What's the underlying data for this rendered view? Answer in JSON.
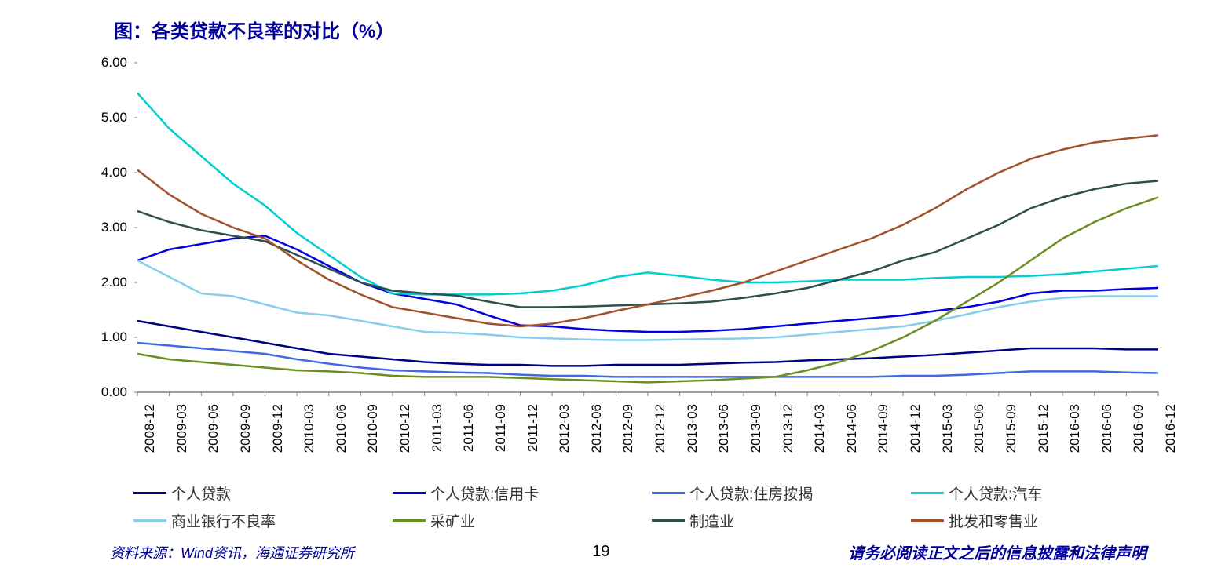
{
  "title": "图：各类贷款不良率的对比（%）",
  "chart": {
    "type": "line",
    "background_color": "#ffffff",
    "title_color": "#000099",
    "title_fontsize": 24,
    "axis_color": "#808080",
    "axis_label_color": "#000000",
    "axis_label_fontsize": 17,
    "ylim": [
      0,
      6
    ],
    "ytick_step": 1,
    "yticks": [
      "0.00",
      "1.00",
      "2.00",
      "3.00",
      "4.00",
      "5.00",
      "6.00"
    ],
    "line_width": 2.5,
    "x_labels": [
      "2008-12",
      "2009-03",
      "2009-06",
      "2009-09",
      "2009-12",
      "2010-03",
      "2010-06",
      "2010-09",
      "2010-12",
      "2011-03",
      "2011-06",
      "2011-09",
      "2011-12",
      "2012-03",
      "2012-06",
      "2012-09",
      "2012-12",
      "2013-03",
      "2013-06",
      "2013-09",
      "2013-12",
      "2014-03",
      "2014-06",
      "2014-09",
      "2014-12",
      "2015-03",
      "2015-06",
      "2015-09",
      "2015-12",
      "2016-03",
      "2016-06",
      "2016-09",
      "2016-12"
    ],
    "series": [
      {
        "name": "个人贷款",
        "color": "#000080",
        "data": [
          1.3,
          1.2,
          1.1,
          1.0,
          0.9,
          0.8,
          0.7,
          0.65,
          0.6,
          0.55,
          0.52,
          0.5,
          0.5,
          0.48,
          0.48,
          0.5,
          0.5,
          0.5,
          0.52,
          0.54,
          0.55,
          0.58,
          0.6,
          0.62,
          0.65,
          0.68,
          0.72,
          0.76,
          0.8,
          0.8,
          0.8,
          0.78,
          0.78
        ]
      },
      {
        "name": "个人贷款:信用卡",
        "color": "#0000e0",
        "data": [
          2.4,
          2.6,
          2.7,
          2.8,
          2.85,
          2.6,
          2.3,
          2.0,
          1.8,
          1.7,
          1.6,
          1.4,
          1.22,
          1.2,
          1.15,
          1.12,
          1.1,
          1.1,
          1.12,
          1.15,
          1.2,
          1.25,
          1.3,
          1.35,
          1.4,
          1.48,
          1.55,
          1.65,
          1.8,
          1.85,
          1.85,
          1.88,
          1.9
        ]
      },
      {
        "name": "个人贷款:住房按揭",
        "color": "#4169e1",
        "data": [
          0.9,
          0.85,
          0.8,
          0.75,
          0.7,
          0.6,
          0.52,
          0.45,
          0.4,
          0.38,
          0.36,
          0.35,
          0.32,
          0.3,
          0.3,
          0.28,
          0.28,
          0.28,
          0.28,
          0.28,
          0.28,
          0.28,
          0.28,
          0.28,
          0.3,
          0.3,
          0.32,
          0.35,
          0.38,
          0.38,
          0.38,
          0.36,
          0.35
        ]
      },
      {
        "name": "个人贷款:汽车",
        "color": "#00ced1",
        "data": [
          5.45,
          4.8,
          4.3,
          3.8,
          3.4,
          2.9,
          2.5,
          2.1,
          1.8,
          1.78,
          1.78,
          1.78,
          1.8,
          1.85,
          1.95,
          2.1,
          2.18,
          2.12,
          2.05,
          2.0,
          2.0,
          2.02,
          2.05,
          2.05,
          2.05,
          2.08,
          2.1,
          2.1,
          2.12,
          2.15,
          2.2,
          2.25,
          2.3
        ]
      },
      {
        "name": "商业银行不良率",
        "color": "#87ceeb",
        "data": [
          2.4,
          2.1,
          1.8,
          1.75,
          1.6,
          1.45,
          1.4,
          1.3,
          1.2,
          1.1,
          1.08,
          1.05,
          1.0,
          0.98,
          0.96,
          0.95,
          0.95,
          0.96,
          0.97,
          0.98,
          1.0,
          1.05,
          1.1,
          1.15,
          1.2,
          1.3,
          1.42,
          1.55,
          1.65,
          1.72,
          1.75,
          1.75,
          1.75
        ]
      },
      {
        "name": "采矿业",
        "color": "#6b8e23",
        "data": [
          0.7,
          0.6,
          0.55,
          0.5,
          0.45,
          0.4,
          0.38,
          0.35,
          0.3,
          0.28,
          0.28,
          0.28,
          0.26,
          0.24,
          0.22,
          0.2,
          0.18,
          0.2,
          0.22,
          0.25,
          0.28,
          0.4,
          0.55,
          0.75,
          1.0,
          1.3,
          1.65,
          2.0,
          2.4,
          2.8,
          3.1,
          3.35,
          3.55
        ]
      },
      {
        "name": "制造业",
        "color": "#2f4f4f",
        "data": [
          3.3,
          3.1,
          2.95,
          2.85,
          2.75,
          2.5,
          2.25,
          2.0,
          1.85,
          1.8,
          1.76,
          1.65,
          1.55,
          1.55,
          1.56,
          1.58,
          1.6,
          1.62,
          1.65,
          1.72,
          1.8,
          1.9,
          2.05,
          2.2,
          2.4,
          2.55,
          2.8,
          3.05,
          3.35,
          3.55,
          3.7,
          3.8,
          3.85
        ]
      },
      {
        "name": "批发和零售业",
        "color": "#a0522d",
        "data": [
          4.05,
          3.6,
          3.25,
          3.0,
          2.8,
          2.4,
          2.05,
          1.78,
          1.55,
          1.45,
          1.35,
          1.25,
          1.2,
          1.25,
          1.35,
          1.48,
          1.6,
          1.72,
          1.85,
          2.0,
          2.2,
          2.4,
          2.6,
          2.8,
          3.05,
          3.35,
          3.7,
          4.0,
          4.25,
          4.42,
          4.55,
          4.62,
          4.68
        ]
      }
    ]
  },
  "legend_fontsize": 19,
  "source": "资料来源：Wind资讯，海通证券研究所",
  "page_number": "19",
  "disclaimer": "请务必阅读正文之后的信息披露和法律声明",
  "footer_color": "#000099",
  "footer_fontsize": 18
}
